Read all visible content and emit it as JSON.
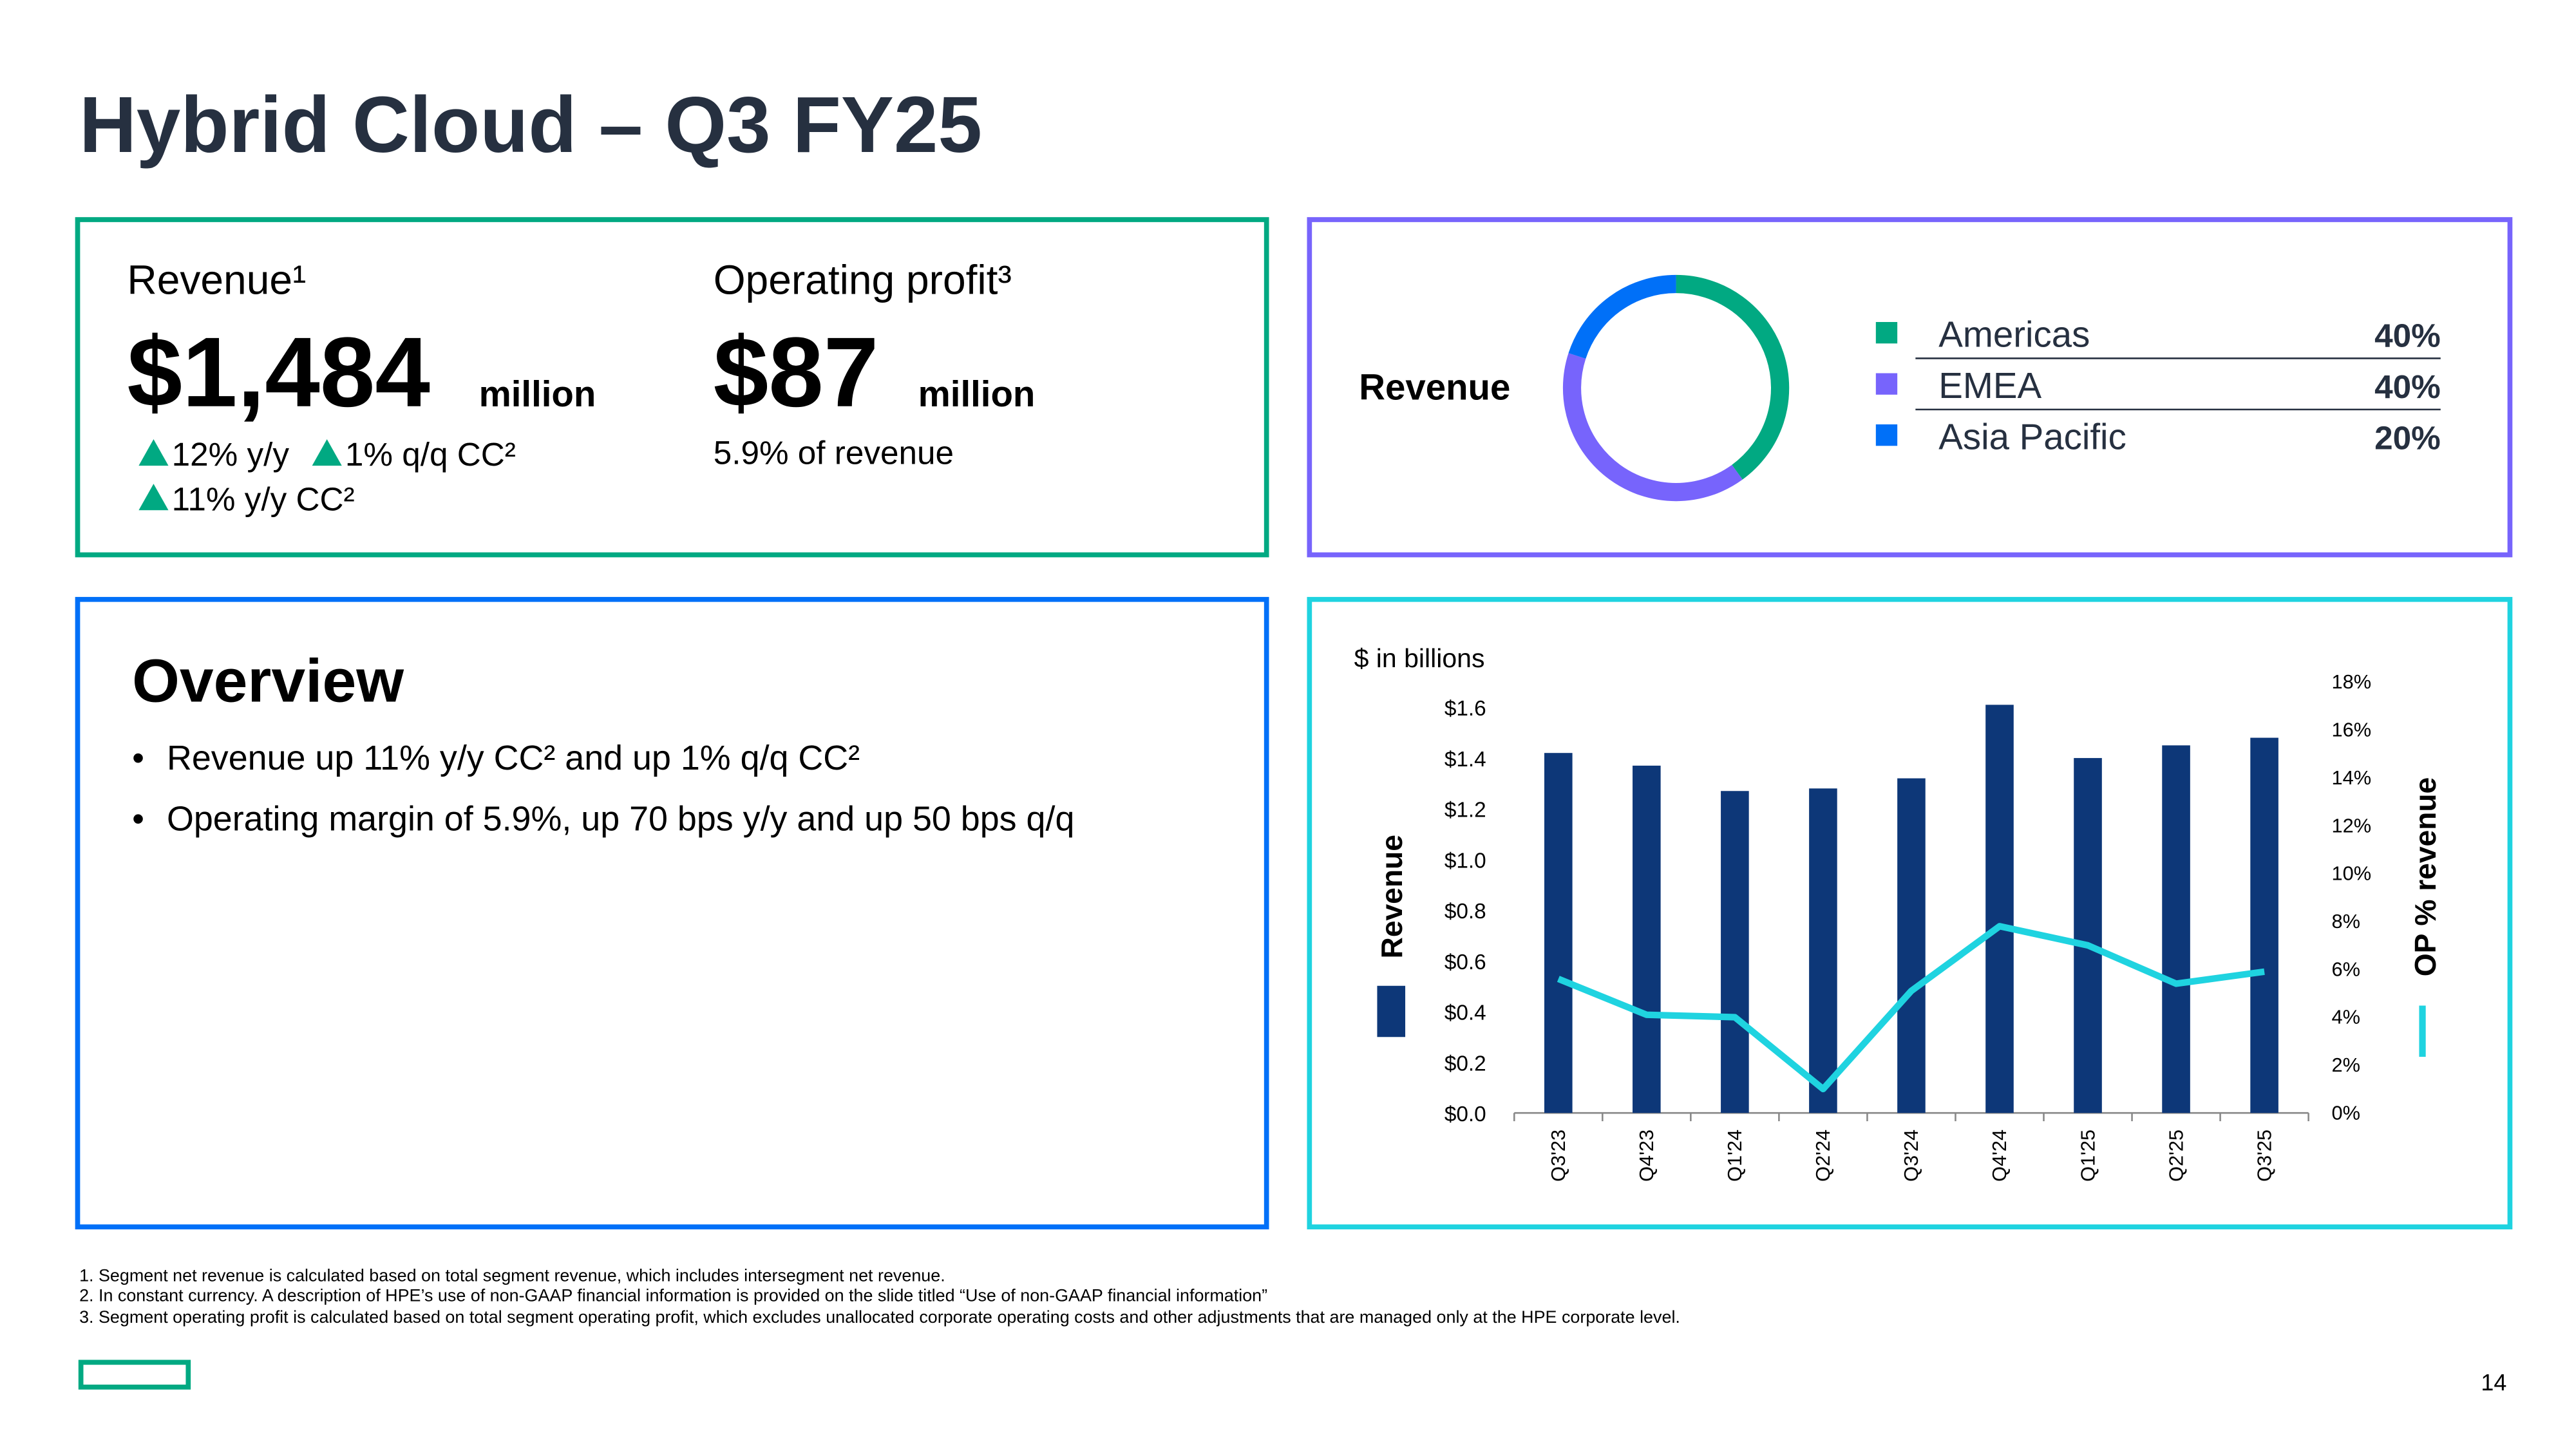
{
  "header": {
    "title": "Hybrid Cloud – Q3 FY25"
  },
  "kpis": {
    "revenue": {
      "label": "Revenue¹",
      "value": "$1,484",
      "unit": "million",
      "changes": [
        "12% y/y",
        "1% q/q CC²",
        "11% y/y CC²"
      ]
    },
    "operating_profit": {
      "label": "Operating profit³",
      "value": "$87",
      "unit": "million",
      "note": "5.9% of revenue"
    }
  },
  "overview": {
    "title": "Overview",
    "bullets": [
      "Revenue up 11% y/y CC² and up 1% q/q CC²",
      "Operating margin of 5.9%, up 70 bps y/y and up 50 bps q/q"
    ]
  },
  "chart_data": [
    {
      "type": "donut",
      "title": "Revenue",
      "categories": [
        "Americas",
        "EMEA",
        "Asia Pacific"
      ],
      "values": [
        40,
        40,
        20
      ],
      "value_labels": [
        "40%",
        "40%",
        "20%"
      ],
      "colors": [
        "#01a982",
        "#7764fc",
        "#0070f8"
      ]
    },
    {
      "type": "bar",
      "subtitle": "$ in billions",
      "categories": [
        "Q3'23",
        "Q4'23",
        "Q1'24",
        "Q2'24",
        "Q3'24",
        "Q4'24",
        "Q1'25",
        "Q2'25",
        "Q3'25"
      ],
      "series": [
        {
          "name": "Revenue",
          "color": "#0d3778",
          "values": [
            1.42,
            1.37,
            1.27,
            1.28,
            1.32,
            1.61,
            1.4,
            1.45,
            1.48
          ]
        },
        {
          "name": "OP % revenue",
          "color": "#1fd3e0",
          "type": "line",
          "axis": "y2",
          "values": [
            5.6,
            4.1,
            4.0,
            1.0,
            5.1,
            7.8,
            7.0,
            5.4,
            5.9
          ]
        }
      ],
      "ylim": [
        0,
        1.7
      ],
      "yticks": [
        {
          "value": 0,
          "label": "$0.0"
        },
        {
          "value": 0.2,
          "label": "$0.2"
        },
        {
          "value": 0.4,
          "label": "$0.4"
        },
        {
          "value": 0.6,
          "label": "$0.6"
        },
        {
          "value": 0.8,
          "label": "$0.8"
        },
        {
          "value": 1.0,
          "label": "$1.0"
        },
        {
          "value": 1.2,
          "label": "$1.2"
        },
        {
          "value": 1.4,
          "label": "$1.4"
        },
        {
          "value": 1.6,
          "label": "$1.6"
        }
      ],
      "y2lim": [
        0,
        18
      ],
      "y2ticks": [
        {
          "value": 0,
          "label": "0%"
        },
        {
          "value": 2,
          "label": "2%"
        },
        {
          "value": 4,
          "label": "4%"
        },
        {
          "value": 6,
          "label": "6%"
        },
        {
          "value": 8,
          "label": "8%"
        },
        {
          "value": 10,
          "label": "10%"
        },
        {
          "value": 12,
          "label": "12%"
        },
        {
          "value": 14,
          "label": "14%"
        },
        {
          "value": 16,
          "label": "16%"
        },
        {
          "value": 18,
          "label": "18%"
        }
      ]
    }
  ],
  "footnotes": [
    "1.  Segment net revenue is calculated based on total segment revenue, which includes intersegment net revenue.",
    "2.  In constant currency. A description of HPE’s use of non-GAAP financial information is provided on the slide titled “Use of non-GAAP financial information”",
    "3.  Segment operating profit is calculated based on total segment operating profit, which excludes unallocated corporate operating costs and other adjustments that are managed only at the HPE corporate level."
  ],
  "page_number": "14"
}
